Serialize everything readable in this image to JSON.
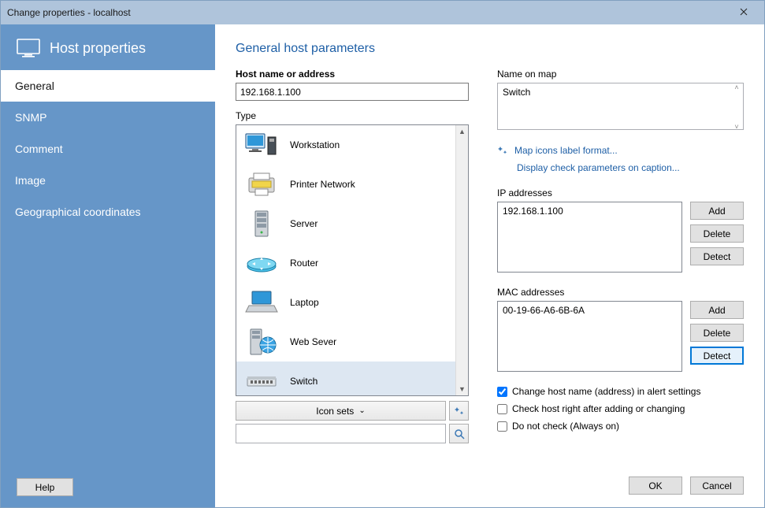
{
  "window": {
    "title": "Change properties - localhost"
  },
  "sidebar": {
    "title": "Host properties",
    "items": [
      "General",
      "SNMP",
      "Comment",
      "Image",
      "Geographical coordinates"
    ],
    "active_index": 0,
    "help_label": "Help"
  },
  "main": {
    "heading": "General host parameters",
    "host_label": "Host name or address",
    "host_value": "192.168.1.100",
    "type_label": "Type",
    "types": [
      "Workstation",
      "Printer Network",
      "Server",
      "Router",
      "Laptop",
      "Web Sever",
      "Switch"
    ],
    "type_selected": 6,
    "iconsets_label": "Icon sets",
    "name_on_map_label": "Name on map",
    "name_on_map_value": "Switch",
    "link_map_icons": "Map icons label format...",
    "link_display_check": "Display check parameters on caption...",
    "ip_label": "IP addresses",
    "ip_list": [
      "192.168.1.100"
    ],
    "mac_label": "MAC addresses",
    "mac_list": [
      "00-19-66-A6-6B-6A"
    ],
    "btn_add": "Add",
    "btn_delete": "Delete",
    "btn_detect": "Detect",
    "check1": "Change host name (address) in alert settings",
    "check2": "Check host right after adding or changing",
    "check3": "Do not check (Always on)",
    "ok": "OK",
    "cancel": "Cancel"
  },
  "colors": {
    "sidebar": "#6696c8",
    "titlebar": "#afc4db",
    "link": "#1e5fa6",
    "btn_highlight": "#0078d7"
  }
}
